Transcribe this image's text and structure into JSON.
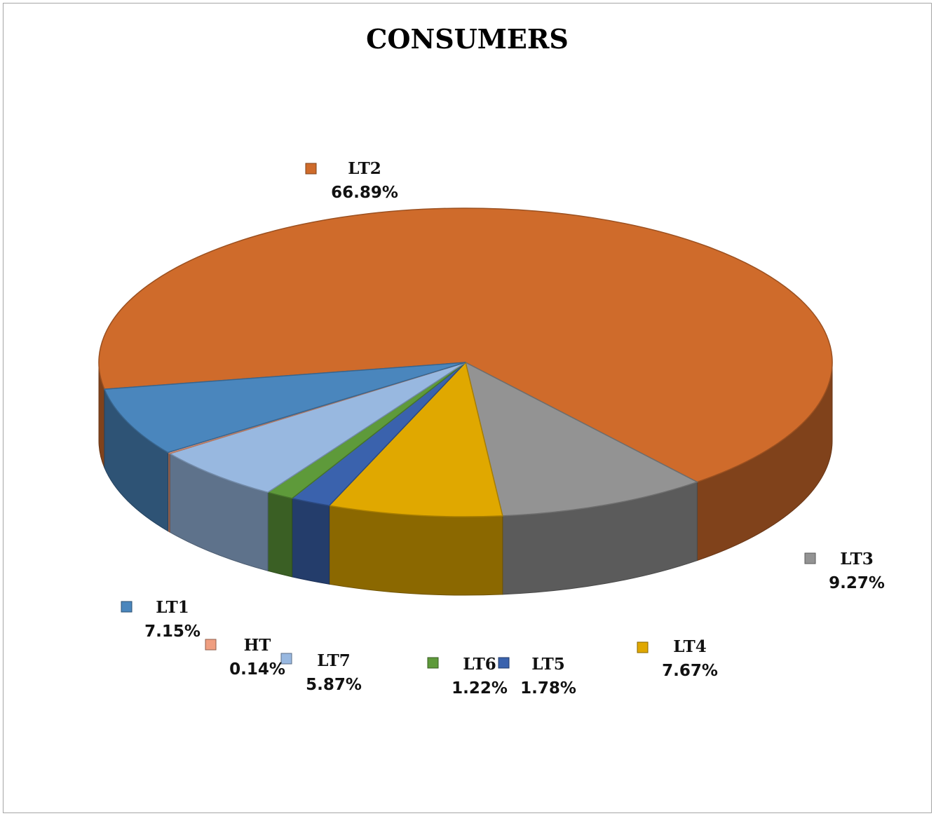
{
  "chart_data": {
    "type": "pie",
    "title": "CONSUMERS",
    "slices": [
      {
        "name": "LT2",
        "value": 66.89,
        "label": "66.89%",
        "color": "#cf6b2b"
      },
      {
        "name": "LT3",
        "value": 9.27,
        "label": "9.27%",
        "color": "#939393"
      },
      {
        "name": "LT4",
        "value": 7.67,
        "label": "7.67%",
        "color": "#e0a800"
      },
      {
        "name": "LT5",
        "value": 1.78,
        "label": "1.78%",
        "color": "#3a62ad"
      },
      {
        "name": "LT6",
        "value": 1.22,
        "label": "1.22%",
        "color": "#5e9a3a"
      },
      {
        "name": "LT7",
        "value": 5.87,
        "label": "5.87%",
        "color": "#98b8e0"
      },
      {
        "name": "HT",
        "value": 0.14,
        "label": "0.14%",
        "color": "#ef9e80"
      },
      {
        "name": "LT1",
        "value": 7.15,
        "label": "7.15%",
        "color": "#4a86bd"
      }
    ],
    "start_angle_deg": 170,
    "view": "3d",
    "legend": "data labels beside slices"
  }
}
